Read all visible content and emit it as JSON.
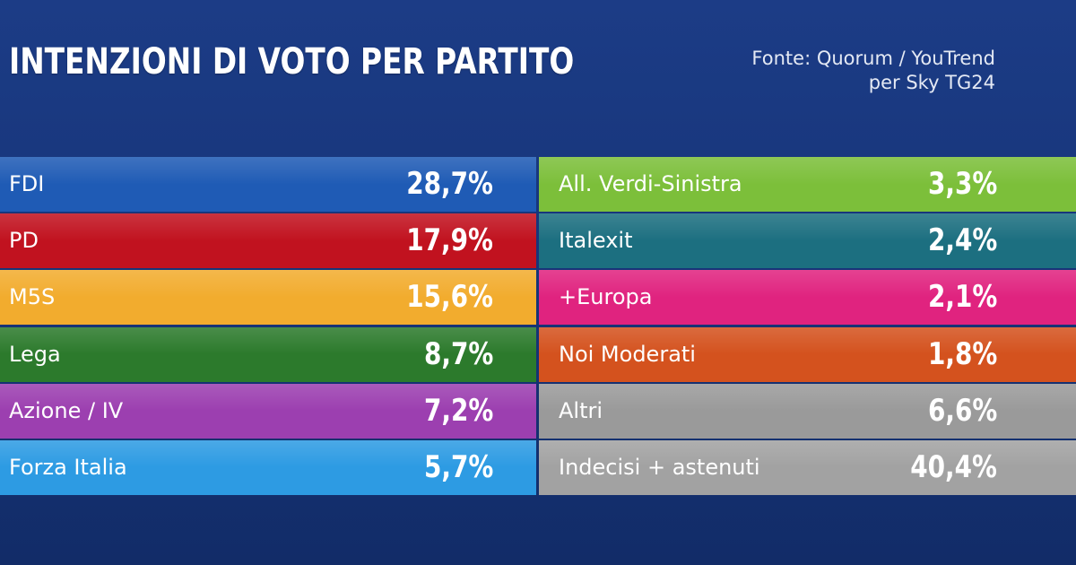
{
  "header": {
    "title": "INTENZIONI DI VOTO PER PARTITO",
    "source_line1": "Fonte: Quorum / YouTrend",
    "source_line2": "per Sky TG24"
  },
  "chart_data": {
    "type": "table",
    "title": "INTENZIONI DI VOTO PER PARTITO",
    "columns": [
      [
        {
          "party": "FDI",
          "value": "28,7%",
          "color": "#1f5bb5"
        },
        {
          "party": "PD",
          "value": "17,9%",
          "color": "#c1121f"
        },
        {
          "party": "M5S",
          "value": "15,6%",
          "color": "#f2ac2e"
        },
        {
          "party": "Lega",
          "value": "8,7%",
          "color": "#2c7a2c"
        },
        {
          "party": "Azione / IV",
          "value": "7,2%",
          "color": "#9c3fb0"
        },
        {
          "party": "Forza Italia",
          "value": "5,7%",
          "color": "#2d9be3"
        }
      ],
      [
        {
          "party": "All. Verdi-Sinistra",
          "value": "3,3%",
          "color": "#7cbf3a"
        },
        {
          "party": "Italexit",
          "value": "2,4%",
          "color": "#1c6f80"
        },
        {
          "party": "+Europa",
          "value": "2,1%",
          "color": "#e0237f"
        },
        {
          "party": "Noi Moderati",
          "value": "1,8%",
          "color": "#d4521e"
        },
        {
          "party": "Altri",
          "value": "6,6%",
          "color": "#9a9a9a"
        },
        {
          "party": "Indecisi + astenuti",
          "value": "40,4%",
          "color": "#a2a2a2"
        }
      ]
    ]
  }
}
